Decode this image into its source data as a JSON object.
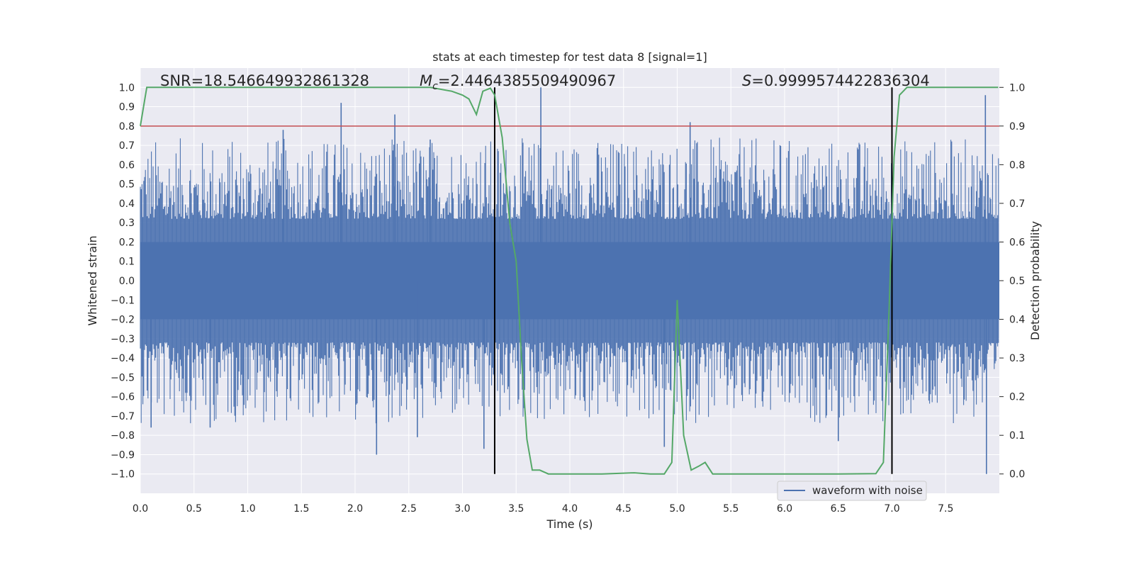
{
  "chart_data": {
    "type": "line",
    "title": "stats at each timestep for test data 8 [signal=1]",
    "xlabel": "Time (s)",
    "ylabel_left": "Whitened strain",
    "ylabel_right": "Detection probability",
    "xlim": [
      0.0,
      8.0
    ],
    "ylim_left": [
      -1.1,
      1.1
    ],
    "ylim_right": [
      -0.05,
      1.05
    ],
    "grid": true,
    "legend_position": "bottom-right",
    "x_ticks": [
      "0.0",
      "0.5",
      "1.0",
      "1.5",
      "2.0",
      "2.5",
      "3.0",
      "3.5",
      "4.0",
      "4.5",
      "5.0",
      "5.5",
      "6.0",
      "6.5",
      "7.0",
      "7.5"
    ],
    "y_left_ticks": [
      "1.0",
      "0.9",
      "0.8",
      "0.7",
      "0.6",
      "0.5",
      "0.4",
      "0.3",
      "0.2",
      "0.1",
      "0.0",
      "−0.1",
      "−0.2",
      "−0.3",
      "−0.4",
      "−0.5",
      "−0.6",
      "−0.7",
      "−0.8",
      "−0.9",
      "−1.0"
    ],
    "y_right_ticks": [
      "1.0",
      "0.9",
      "0.8",
      "0.7",
      "0.6",
      "0.5",
      "0.4",
      "0.3",
      "0.2",
      "0.1",
      "0.0"
    ],
    "annotations": {
      "snr": "SNR=18.546649932861328",
      "mc_prefix": "M",
      "mc_sub": "c",
      "mc_value": "=2.4464385509490967",
      "s_prefix": "S",
      "s_value": "=0.9999574422836304"
    },
    "threshold": {
      "value": 0.8,
      "axis": "left",
      "color": "#c44e52"
    },
    "vlines": {
      "x": [
        3.3,
        7.0
      ],
      "color": "#000000"
    },
    "series": [
      {
        "name": "waveform with noise",
        "color": "#4c72b0",
        "axis": "left",
        "dense_band_range": [
          -0.2,
          0.2
        ],
        "upper_spikes": [
          [
            1.87,
            0.92
          ],
          [
            2.37,
            0.86
          ],
          [
            3.73,
            1.0
          ],
          [
            5.12,
            0.82
          ],
          [
            7.87,
            0.96
          ],
          [
            1.33,
            0.78
          ],
          [
            2.7,
            0.73
          ]
        ],
        "lower_spikes": [
          [
            2.2,
            -0.9
          ],
          [
            2.58,
            -0.81
          ],
          [
            3.2,
            -0.87
          ],
          [
            4.88,
            -0.86
          ],
          [
            7.88,
            -1.0
          ],
          [
            6.5,
            -0.83
          ],
          [
            0.1,
            -0.76
          ],
          [
            0.65,
            -0.76
          ]
        ]
      },
      {
        "name": "detection probability",
        "color": "#55a868",
        "axis": "right",
        "x": [
          0.0,
          0.06,
          0.2,
          0.5,
          1.0,
          1.5,
          2.0,
          2.5,
          2.7,
          2.9,
          3.0,
          3.06,
          3.13,
          3.19,
          3.26,
          3.3,
          3.37,
          3.44,
          3.5,
          3.55,
          3.6,
          3.65,
          3.72,
          3.8,
          4.0,
          4.3,
          4.6,
          4.75,
          4.88,
          4.95,
          5.0,
          5.06,
          5.13,
          5.2,
          5.26,
          5.33,
          5.4,
          5.6,
          6.0,
          6.5,
          6.85,
          6.92,
          6.97,
          7.02,
          7.07,
          7.14,
          7.2,
          7.4,
          7.7,
          7.99
        ],
        "y": [
          0.9,
          1.0,
          1.0,
          1.0,
          1.0,
          1.0,
          1.0,
          1.0,
          1.0,
          0.99,
          0.98,
          0.97,
          0.93,
          0.99,
          0.998,
          0.98,
          0.87,
          0.65,
          0.55,
          0.3,
          0.09,
          0.01,
          0.01,
          0.0,
          0.0,
          0.0,
          0.003,
          0.0,
          0.0,
          0.03,
          0.45,
          0.1,
          0.01,
          0.02,
          0.03,
          0.0,
          0.0,
          0.0,
          0.0,
          0.0,
          0.001,
          0.03,
          0.4,
          0.82,
          0.98,
          1.0,
          1.0,
          1.0,
          1.0,
          1.0
        ]
      }
    ]
  }
}
